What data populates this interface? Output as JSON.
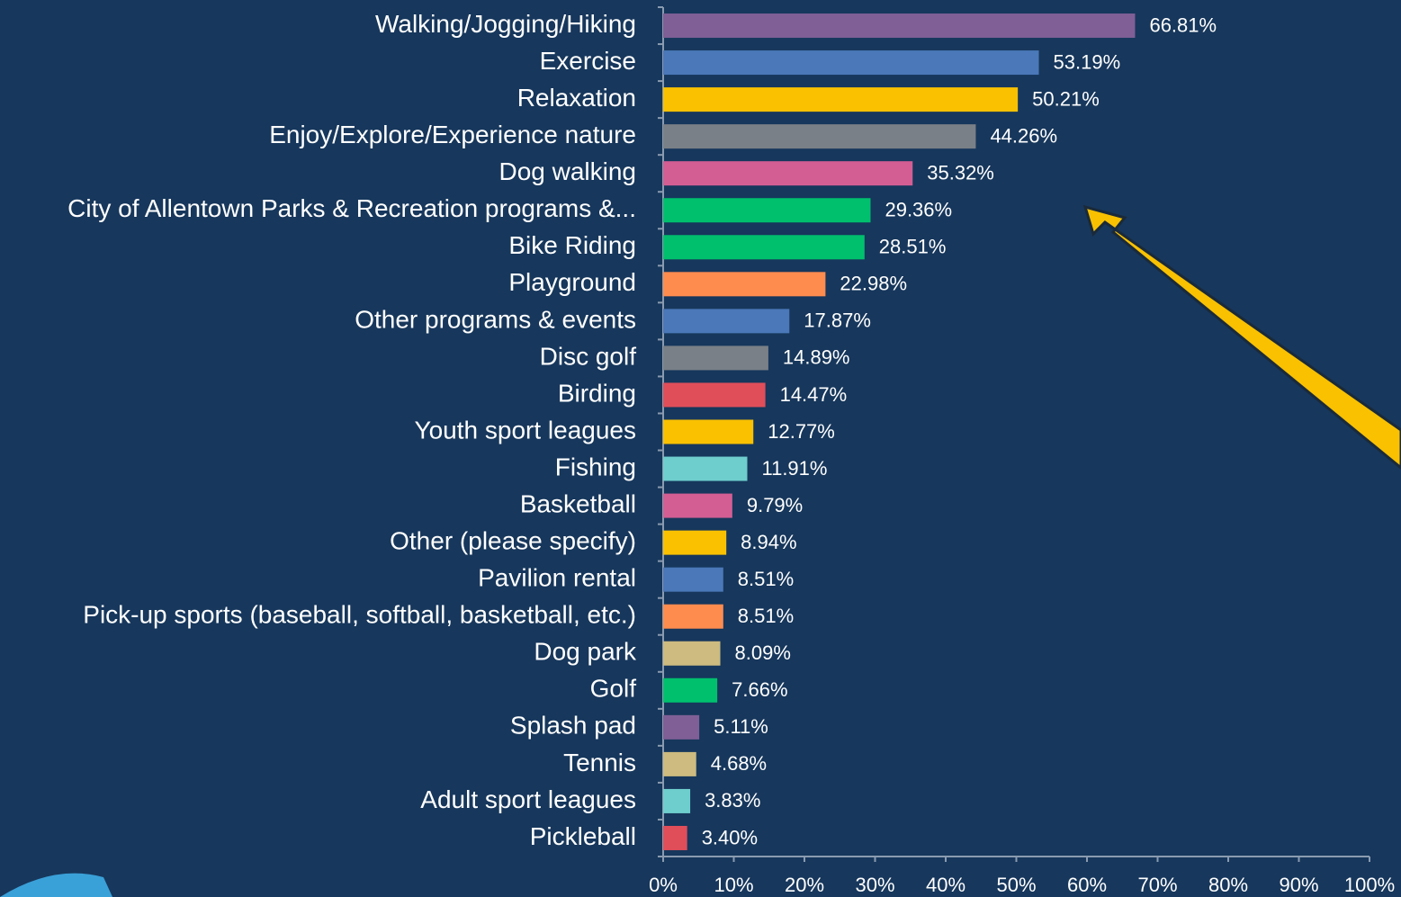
{
  "chart_data": {
    "type": "bar",
    "orientation": "horizontal",
    "categories": [
      "Walking/Jogging/Hiking",
      "Exercise",
      "Relaxation",
      "Enjoy/Explore/Experience nature",
      "Dog walking",
      "City of Allentown Parks & Recreation programs &...",
      "Bike Riding",
      "Playground",
      "Other programs & events",
      "Disc golf",
      "Birding",
      "Youth sport leagues",
      "Fishing",
      "Basketball",
      "Other (please specify)",
      "Pavilion rental",
      "Pick-up sports (baseball, softball, basketball, etc.)",
      "Dog park",
      "Golf",
      "Splash pad",
      "Tennis",
      "Adult sport leagues",
      "Pickleball"
    ],
    "values": [
      66.81,
      53.19,
      50.21,
      44.26,
      35.32,
      29.36,
      28.51,
      22.98,
      17.87,
      14.89,
      14.47,
      12.77,
      11.91,
      9.79,
      8.94,
      8.51,
      8.51,
      8.09,
      7.66,
      5.11,
      4.68,
      3.83,
      3.4
    ],
    "value_labels": [
      "66.81%",
      "53.19%",
      "50.21%",
      "44.26%",
      "35.32%",
      "29.36%",
      "28.51%",
      "22.98%",
      "17.87%",
      "14.89%",
      "14.47%",
      "12.77%",
      "11.91%",
      "9.79%",
      "8.94%",
      "8.51%",
      "8.51%",
      "8.09%",
      "7.66%",
      "5.11%",
      "4.68%",
      "3.83%",
      "3.40%"
    ],
    "colors": [
      "#7f5f96",
      "#4a78b8",
      "#f9c100",
      "#7a8087",
      "#d35e94",
      "#00c06e",
      "#00c06e",
      "#ff8c4f",
      "#4a78b8",
      "#7a8087",
      "#e04e5a",
      "#f9c100",
      "#6ecece",
      "#d35e94",
      "#f9c100",
      "#4a78b8",
      "#ff8c4f",
      "#cdbb7f",
      "#00c06e",
      "#7f5f96",
      "#cdbb7f",
      "#6ecece",
      "#e04e5a"
    ],
    "xlim": [
      0,
      100
    ],
    "xticks": [
      {
        "value": 0,
        "label": "0%"
      },
      {
        "value": 10,
        "label": "10%"
      },
      {
        "value": 20,
        "label": "20%"
      },
      {
        "value": 30,
        "label": "30%"
      },
      {
        "value": 40,
        "label": "40%"
      },
      {
        "value": 50,
        "label": "50%"
      },
      {
        "value": 60,
        "label": "60%"
      },
      {
        "value": 70,
        "label": "70%"
      },
      {
        "value": 80,
        "label": "80%"
      },
      {
        "value": 90,
        "label": "90%"
      },
      {
        "value": 100,
        "label": "100%"
      }
    ],
    "grid": false
  }
}
